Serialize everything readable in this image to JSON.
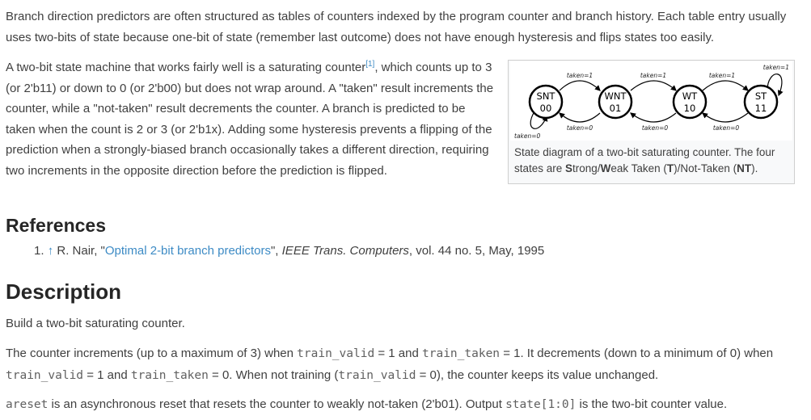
{
  "intro_text": "Branch direction predictors are often structured as tables of counters indexed by the program counter and branch history. Each table entry usually uses two-bits of state because one-bit of state (remember last outcome) does not have enough hysteresis and flips states too easily.",
  "counter_para": {
    "before_ref": "A two-bit state machine that works fairly well is a saturating counter",
    "ref_mark": "[1]",
    "after_ref": ", which counts up to 3 (or 2'b11) or down to 0 (or 2'b00) but does not wrap around. A \"taken\" result increments the counter, while a \"not-taken\" result decrements the counter. A branch is predicted to be taken when the count is 2 or 3 (or 2'b1x). Adding some hysteresis prevents a flipping of the prediction when a strongly-biased branch occasionally takes a different direction, requiring two increments in the opposite direction before the prediction is flipped."
  },
  "figure": {
    "states": [
      {
        "name": "SNT",
        "code": "00"
      },
      {
        "name": "WNT",
        "code": "01"
      },
      {
        "name": "WT",
        "code": "10"
      },
      {
        "name": "ST",
        "code": "11"
      }
    ],
    "edge_labels": {
      "taken_forward": [
        "taken=1",
        "taken=1",
        "taken=1"
      ],
      "taken_backward": [
        "taken=0",
        "taken=0",
        "taken=0"
      ],
      "self_loop_top": "taken=1",
      "self_loop_bottom": "taken=0"
    },
    "caption": {
      "p1": "State diagram of a two-bit saturating counter. The four states are ",
      "s": "S",
      "p2": "trong/",
      "w": "W",
      "p3": "eak Taken (",
      "t": "T",
      "p4": ")/Not-Taken (",
      "nt": "NT",
      "p5": ")."
    }
  },
  "references": {
    "heading": "References",
    "item": {
      "number": "1.",
      "arrow": "↑",
      "author": "R. Nair, \"",
      "title_link": "Optimal 2-bit branch predictors",
      "after_title": "\", ",
      "journal": "IEEE Trans. Computers",
      "details": ", vol. 44 no. 5, May, 1995"
    }
  },
  "description": {
    "heading": "Description",
    "line1": "Build a two-bit saturating counter.",
    "line2": {
      "a": "The counter increments (up to a maximum of 3) when ",
      "code1": "train_valid",
      "b": " = 1 and ",
      "code2": "train_taken",
      "c": " = 1. It decrements (down to a minimum of 0) when ",
      "code3": "train_valid",
      "d": " = 1 and ",
      "code4": "train_taken",
      "e": " = 0. When not training (",
      "code5": "train_valid",
      "f": " = 0), the counter keeps its value unchanged."
    },
    "line3": {
      "code1": "areset",
      "a": " is an asynchronous reset that resets the counter to weakly not-taken (2'b01). Output ",
      "code2": "state[1:0]",
      "b": " is the two-bit counter value."
    }
  }
}
